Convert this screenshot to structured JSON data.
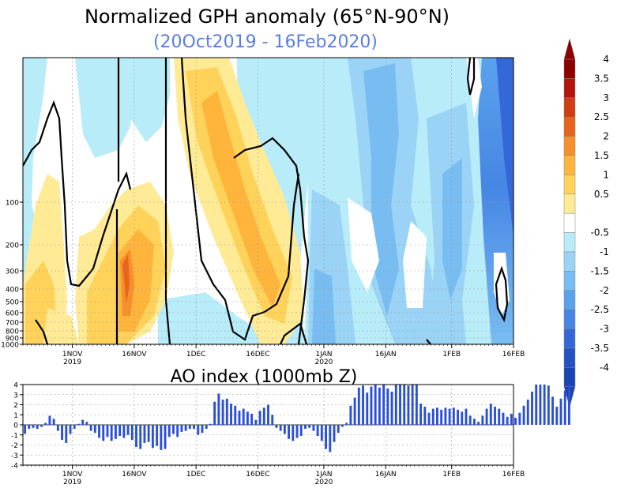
{
  "title": "Normalized GPH anomaly (65°N-90°N)",
  "subtitle": "(20Oct2019 - 16Feb2020)",
  "colors": {
    "subtitle": "#5b7fe0",
    "ao_bar": "#2a4fd6",
    "pos": [
      "#ffeb96",
      "#ffd25a",
      "#ffb43c",
      "#f59128",
      "#e8641c",
      "#d23c14",
      "#b4140c",
      "#8c0000"
    ],
    "neg": [
      "#ffffff",
      "#b7ecf8",
      "#9bd3f6",
      "#78bdf2",
      "#5aa2ec",
      "#4686e4",
      "#3468d8",
      "#2352c6",
      "#1a44b4"
    ]
  },
  "chart_data": [
    {
      "type": "heatmap",
      "title": "Normalized GPH anomaly (65°N-90°N)",
      "subtitle": "(20Oct2019 - 16Feb2020)",
      "x_ticks": [
        {
          "date": "1NOV",
          "year": "2019"
        },
        {
          "date": "16NOV",
          "year": ""
        },
        {
          "date": "1DEC",
          "year": ""
        },
        {
          "date": "16DEC",
          "year": ""
        },
        {
          "date": "1JAN",
          "year": "2020"
        },
        {
          "date": "16JAN",
          "year": ""
        },
        {
          "date": "1FEB",
          "year": ""
        },
        {
          "date": "16FEB",
          "year": ""
        }
      ],
      "y_ticks": [
        "100",
        "200",
        "300",
        "400",
        "500",
        "600",
        "700",
        "800",
        "900",
        "1000"
      ],
      "colorbar_levels": [
        "4",
        "3.5",
        "3",
        "2.5",
        "2",
        "1.5",
        "1",
        "0.5",
        "-0.5",
        "-1",
        "-1.5",
        "-2",
        "-2.5",
        "-3",
        "-3.5",
        "-4"
      ],
      "zlim": [
        -4,
        4
      ],
      "features": [
        {
          "start": "3Nov2019",
          "end": "8Nov2019",
          "levels": "1000-100 hPa",
          "anomaly": 1.0
        },
        {
          "start": "14Nov2019",
          "end": "20Nov2019",
          "levels": "1000-100 hPa",
          "anomaly": 2.5
        },
        {
          "start": "27Nov2019",
          "end": "22Dec2019",
          "levels": "10-900 hPa",
          "anomaly": 1.5
        },
        {
          "start": "25Dec2019",
          "end": "16Feb2020",
          "levels": "all",
          "anomaly": -2.0
        }
      ]
    },
    {
      "type": "bar",
      "title": "AO index (1000mb Z)",
      "x_ticks": [
        {
          "date": "1NOV",
          "year": "2019"
        },
        {
          "date": "16NOV",
          "year": ""
        },
        {
          "date": "1DEC",
          "year": ""
        },
        {
          "date": "16DEC",
          "year": ""
        },
        {
          "date": "1JAN",
          "year": "2020"
        },
        {
          "date": "16JAN",
          "year": ""
        },
        {
          "date": "1FEB",
          "year": ""
        },
        {
          "date": "16FEB",
          "year": ""
        }
      ],
      "y_ticks": [
        "4",
        "3",
        "2",
        "1",
        "0",
        "-1",
        "-2",
        "-3",
        "-4"
      ],
      "ylim": [
        -4,
        4
      ],
      "start_date": "20Oct2019",
      "values": [
        -0.9,
        -0.4,
        -0.3,
        -0.4,
        -0.2,
        0.2,
        0.9,
        0.6,
        -0.6,
        -1.5,
        -1.8,
        -0.9,
        -0.4,
        0.1,
        0.5,
        0.3,
        -0.6,
        -0.8,
        -1.3,
        -1.6,
        -1.2,
        -1.6,
        -1.4,
        -1.1,
        -1.3,
        -1.0,
        -1.5,
        -2.2,
        -2.4,
        -1.8,
        -1.7,
        -2.3,
        -2.1,
        -2.5,
        -2.4,
        -1.2,
        -0.9,
        -1.2,
        -0.7,
        -0.6,
        -0.4,
        -0.4,
        -1.0,
        -0.8,
        -0.4,
        0.1,
        2.3,
        3.1,
        2.5,
        2.6,
        2.1,
        1.9,
        1.4,
        1.6,
        1.3,
        1.1,
        0.5,
        1.4,
        1.7,
        2.0,
        1.0,
        -0.3,
        -0.6,
        -0.9,
        -1.4,
        -1.6,
        -1.3,
        -1.1,
        -0.4,
        -0.3,
        -0.6,
        -1.1,
        -1.6,
        -2.4,
        -2.7,
        -1.7,
        -0.8,
        -0.2,
        0.2,
        1.9,
        2.7,
        3.7,
        3.9,
        3.2,
        3.8,
        4.0,
        3.7,
        4.0,
        3.6,
        3.3,
        4.0,
        4.0,
        4.0,
        3.9,
        4.0,
        4.0,
        2.1,
        1.8,
        1.2,
        1.6,
        1.7,
        1.5,
        1.7,
        1.6,
        1.7,
        1.5,
        1.3,
        1.6,
        0.9,
        0.6,
        0.3,
        0.9,
        1.6,
        2.1,
        1.8,
        1.6,
        1.2,
        0.8,
        1.1,
        0.7,
        1.2,
        1.9,
        2.5,
        3.3,
        4.0,
        4.0,
        4.0,
        3.9,
        2.8,
        1.8,
        2.6,
        3.4,
        4.0
      ]
    }
  ]
}
